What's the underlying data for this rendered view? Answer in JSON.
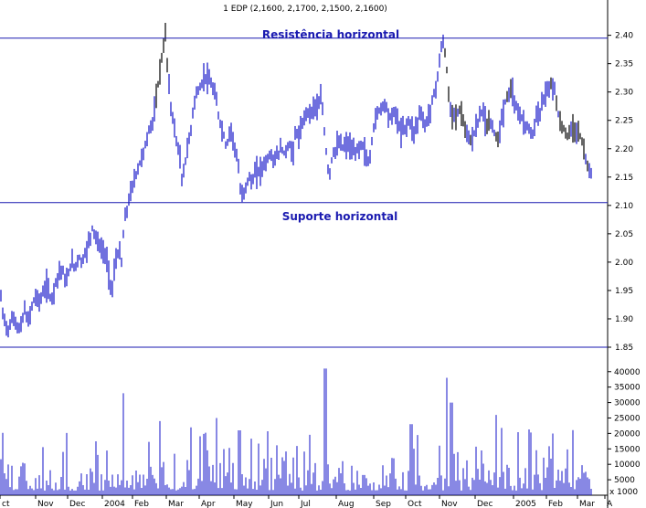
{
  "chart_data": {
    "type": "candlestick",
    "title": "1 EDP (2,1600, 2,1700, 2,1500, 2,1600)",
    "price_axis": {
      "ylim": [
        1.85,
        2.43
      ],
      "ticks": [
        "2.40",
        "2.35",
        "2.30",
        "2.25",
        "2.20",
        "2.15",
        "2.10",
        "2.05",
        "2.00",
        "1.95",
        "1.90",
        "1.85"
      ]
    },
    "volume_axis": {
      "ylim": [
        0,
        42000
      ],
      "ticks": [
        "40000",
        "35000",
        "30000",
        "25000",
        "20000",
        "15000",
        "10000",
        "5000"
      ],
      "multiplier_label": "x 1000"
    },
    "x_labels": [
      "ct",
      "Nov",
      "Dec",
      "2004",
      "Feb",
      "Mar",
      "Apr",
      "May",
      "Jun",
      "Jul",
      "Aug",
      "Sep",
      "Oct",
      "Nov",
      "Dec",
      "2005",
      "Feb",
      "Mar",
      "A"
    ],
    "annotations": {
      "resistance_label": "Resistência horizontal",
      "resistance_level": 2.395,
      "support_label": "Suporte horizontal",
      "support_level": 2.105
    },
    "price_path": [
      [
        0,
        1.95
      ],
      [
        3,
        1.91
      ],
      [
        6,
        1.89
      ],
      [
        10,
        1.88
      ],
      [
        13,
        1.9
      ],
      [
        16,
        1.9
      ],
      [
        20,
        1.88
      ],
      [
        24,
        1.89
      ],
      [
        27,
        1.92
      ],
      [
        30,
        1.89
      ],
      [
        33,
        1.91
      ],
      [
        36,
        1.93
      ],
      [
        40,
        1.94
      ],
      [
        44,
        1.93
      ],
      [
        48,
        1.95
      ],
      [
        52,
        1.96
      ],
      [
        56,
        1.93
      ],
      [
        60,
        1.96
      ],
      [
        64,
        1.98
      ],
      [
        68,
        1.99
      ],
      [
        72,
        1.96
      ],
      [
        75,
        1.98
      ],
      [
        78,
        2.0
      ],
      [
        82,
        1.99
      ],
      [
        86,
        2.01
      ],
      [
        90,
        2.0
      ],
      [
        94,
        2.02
      ],
      [
        98,
        2.04
      ],
      [
        101,
        2.06
      ],
      [
        104,
        2.05
      ],
      [
        108,
        2.03
      ],
      [
        112,
        2.02
      ],
      [
        116,
        2.01
      ],
      [
        120,
        1.97
      ],
      [
        123,
        1.95
      ],
      [
        126,
        2.0
      ],
      [
        130,
        2.02
      ],
      [
        133,
        2.0
      ],
      [
        136,
        2.07
      ],
      [
        140,
        2.1
      ],
      [
        144,
        2.13
      ],
      [
        148,
        2.15
      ],
      [
        152,
        2.17
      ],
      [
        156,
        2.19
      ],
      [
        160,
        2.21
      ],
      [
        164,
        2.24
      ],
      [
        168,
        2.25
      ],
      [
        172,
        2.3
      ],
      [
        175,
        2.34
      ],
      [
        178,
        2.37
      ],
      [
        181,
        2.4
      ],
      [
        184,
        2.33
      ],
      [
        187,
        2.27
      ],
      [
        190,
        2.25
      ],
      [
        193,
        2.21
      ],
      [
        196,
        2.2
      ],
      [
        199,
        2.14
      ],
      [
        202,
        2.17
      ],
      [
        205,
        2.2
      ],
      [
        208,
        2.22
      ],
      [
        212,
        2.28
      ],
      [
        216,
        2.3
      ],
      [
        220,
        2.31
      ],
      [
        224,
        2.33
      ],
      [
        228,
        2.32
      ],
      [
        232,
        2.31
      ],
      [
        236,
        2.29
      ],
      [
        240,
        2.25
      ],
      [
        244,
        2.23
      ],
      [
        248,
        2.2
      ],
      [
        252,
        2.24
      ],
      [
        256,
        2.21
      ],
      [
        260,
        2.18
      ],
      [
        264,
        2.11
      ],
      [
        268,
        2.13
      ],
      [
        272,
        2.15
      ],
      [
        276,
        2.14
      ],
      [
        280,
        2.16
      ],
      [
        284,
        2.16
      ],
      [
        288,
        2.17
      ],
      [
        292,
        2.18
      ],
      [
        296,
        2.19
      ],
      [
        300,
        2.18
      ],
      [
        304,
        2.19
      ],
      [
        308,
        2.2
      ],
      [
        312,
        2.19
      ],
      [
        316,
        2.21
      ],
      [
        320,
        2.19
      ],
      [
        324,
        2.23
      ],
      [
        328,
        2.22
      ],
      [
        332,
        2.25
      ],
      [
        336,
        2.27
      ],
      [
        340,
        2.26
      ],
      [
        344,
        2.28
      ],
      [
        348,
        2.27
      ],
      [
        352,
        2.29
      ],
      [
        356,
        2.21
      ],
      [
        360,
        2.15
      ],
      [
        364,
        2.19
      ],
      [
        368,
        2.2
      ],
      [
        372,
        2.21
      ],
      [
        376,
        2.2
      ],
      [
        380,
        2.21
      ],
      [
        384,
        2.2
      ],
      [
        388,
        2.19
      ],
      [
        392,
        2.2
      ],
      [
        396,
        2.21
      ],
      [
        400,
        2.19
      ],
      [
        404,
        2.17
      ],
      [
        408,
        2.23
      ],
      [
        412,
        2.26
      ],
      [
        416,
        2.27
      ],
      [
        420,
        2.28
      ],
      [
        424,
        2.27
      ],
      [
        428,
        2.25
      ],
      [
        432,
        2.27
      ],
      [
        436,
        2.24
      ],
      [
        440,
        2.23
      ],
      [
        444,
        2.24
      ],
      [
        448,
        2.25
      ],
      [
        452,
        2.23
      ],
      [
        456,
        2.24
      ],
      [
        460,
        2.27
      ],
      [
        464,
        2.24
      ],
      [
        468,
        2.25
      ],
      [
        472,
        2.28
      ],
      [
        476,
        2.3
      ],
      [
        480,
        2.34
      ],
      [
        484,
        2.4
      ],
      [
        488,
        2.36
      ],
      [
        492,
        2.27
      ],
      [
        496,
        2.25
      ],
      [
        500,
        2.26
      ],
      [
        504,
        2.27
      ],
      [
        508,
        2.24
      ],
      [
        512,
        2.21
      ],
      [
        516,
        2.22
      ],
      [
        520,
        2.23
      ],
      [
        524,
        2.25
      ],
      [
        528,
        2.27
      ],
      [
        532,
        2.24
      ],
      [
        536,
        2.25
      ],
      [
        540,
        2.23
      ],
      [
        544,
        2.22
      ],
      [
        548,
        2.24
      ],
      [
        552,
        2.28
      ],
      [
        556,
        2.29
      ],
      [
        560,
        2.31
      ],
      [
        564,
        2.28
      ],
      [
        568,
        2.26
      ],
      [
        572,
        2.25
      ],
      [
        576,
        2.24
      ],
      [
        580,
        2.23
      ],
      [
        584,
        2.23
      ],
      [
        588,
        2.26
      ],
      [
        592,
        2.27
      ],
      [
        596,
        2.29
      ],
      [
        600,
        2.31
      ],
      [
        604,
        2.32
      ],
      [
        608,
        2.3
      ],
      [
        612,
        2.25
      ],
      [
        616,
        2.24
      ],
      [
        620,
        2.22
      ],
      [
        624,
        2.23
      ],
      [
        628,
        2.24
      ],
      [
        632,
        2.23
      ],
      [
        636,
        2.22
      ],
      [
        640,
        2.19
      ],
      [
        644,
        2.17
      ],
      [
        647,
        2.16
      ]
    ]
  }
}
